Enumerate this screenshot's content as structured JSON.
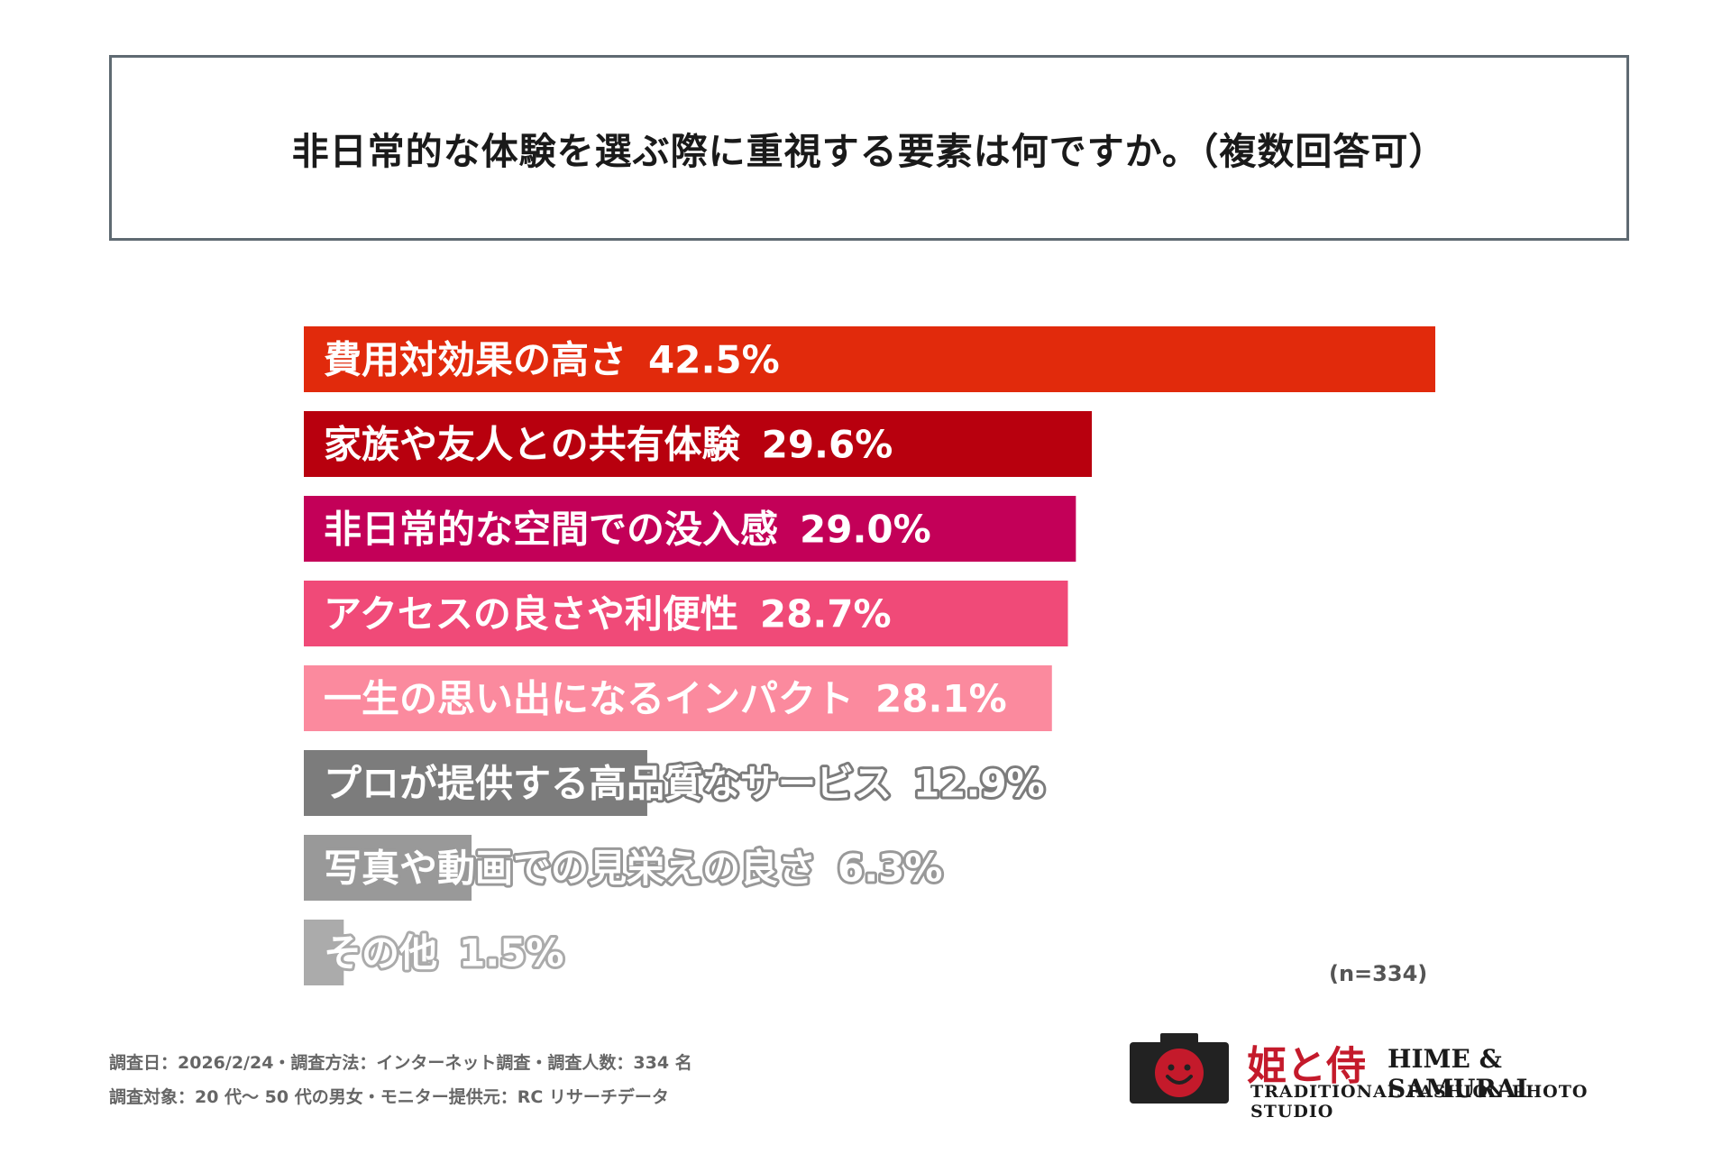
{
  "title": "非日常的な体験を選ぶ際に重視する要素は何ですか。（複数回答可）",
  "chart_data": {
    "type": "bar",
    "orientation": "horizontal",
    "title": "非日常的な体験を選ぶ際に重視する要素は何ですか。（複数回答可）",
    "categories": [
      "費用対効果の高さ",
      "家族や友人との共有体験",
      "非日常的な空間での没入感",
      "アクセスの良さや利便性",
      "一生の思い出になるインパクト",
      "プロが提供する高品質なサービス",
      "写真や動画での見栄えの良さ",
      "その他"
    ],
    "values": [
      42.5,
      29.6,
      29.0,
      28.7,
      28.1,
      12.9,
      6.3,
      1.5
    ],
    "value_labels": [
      "42.5%",
      "29.6%",
      "29.0%",
      "28.7%",
      "28.1%",
      "12.9%",
      "6.3%",
      "1.5%"
    ],
    "colors": [
      "#e12a0c",
      "#b8000e",
      "#c30058",
      "#f04a78",
      "#fb8a9e",
      "#7c7c7c",
      "#999999",
      "#ababab"
    ],
    "unit": "%"
  },
  "n_label": "(n=334)",
  "footnotes": [
    "調査日：2026/2/24・調査方法：インターネット調査・調査人数：334 名",
    "調査対象：20 代〜 50 代の男女・モニター提供元：RC リサーチデータ"
  ],
  "logo": {
    "jp": "姫と侍",
    "en": "HIME & SAMURAI",
    "sub": "TRADITIONAL FASHION PHOTO STUDIO",
    "icon": "camera-smile-icon",
    "accent": "#c41a2b"
  }
}
